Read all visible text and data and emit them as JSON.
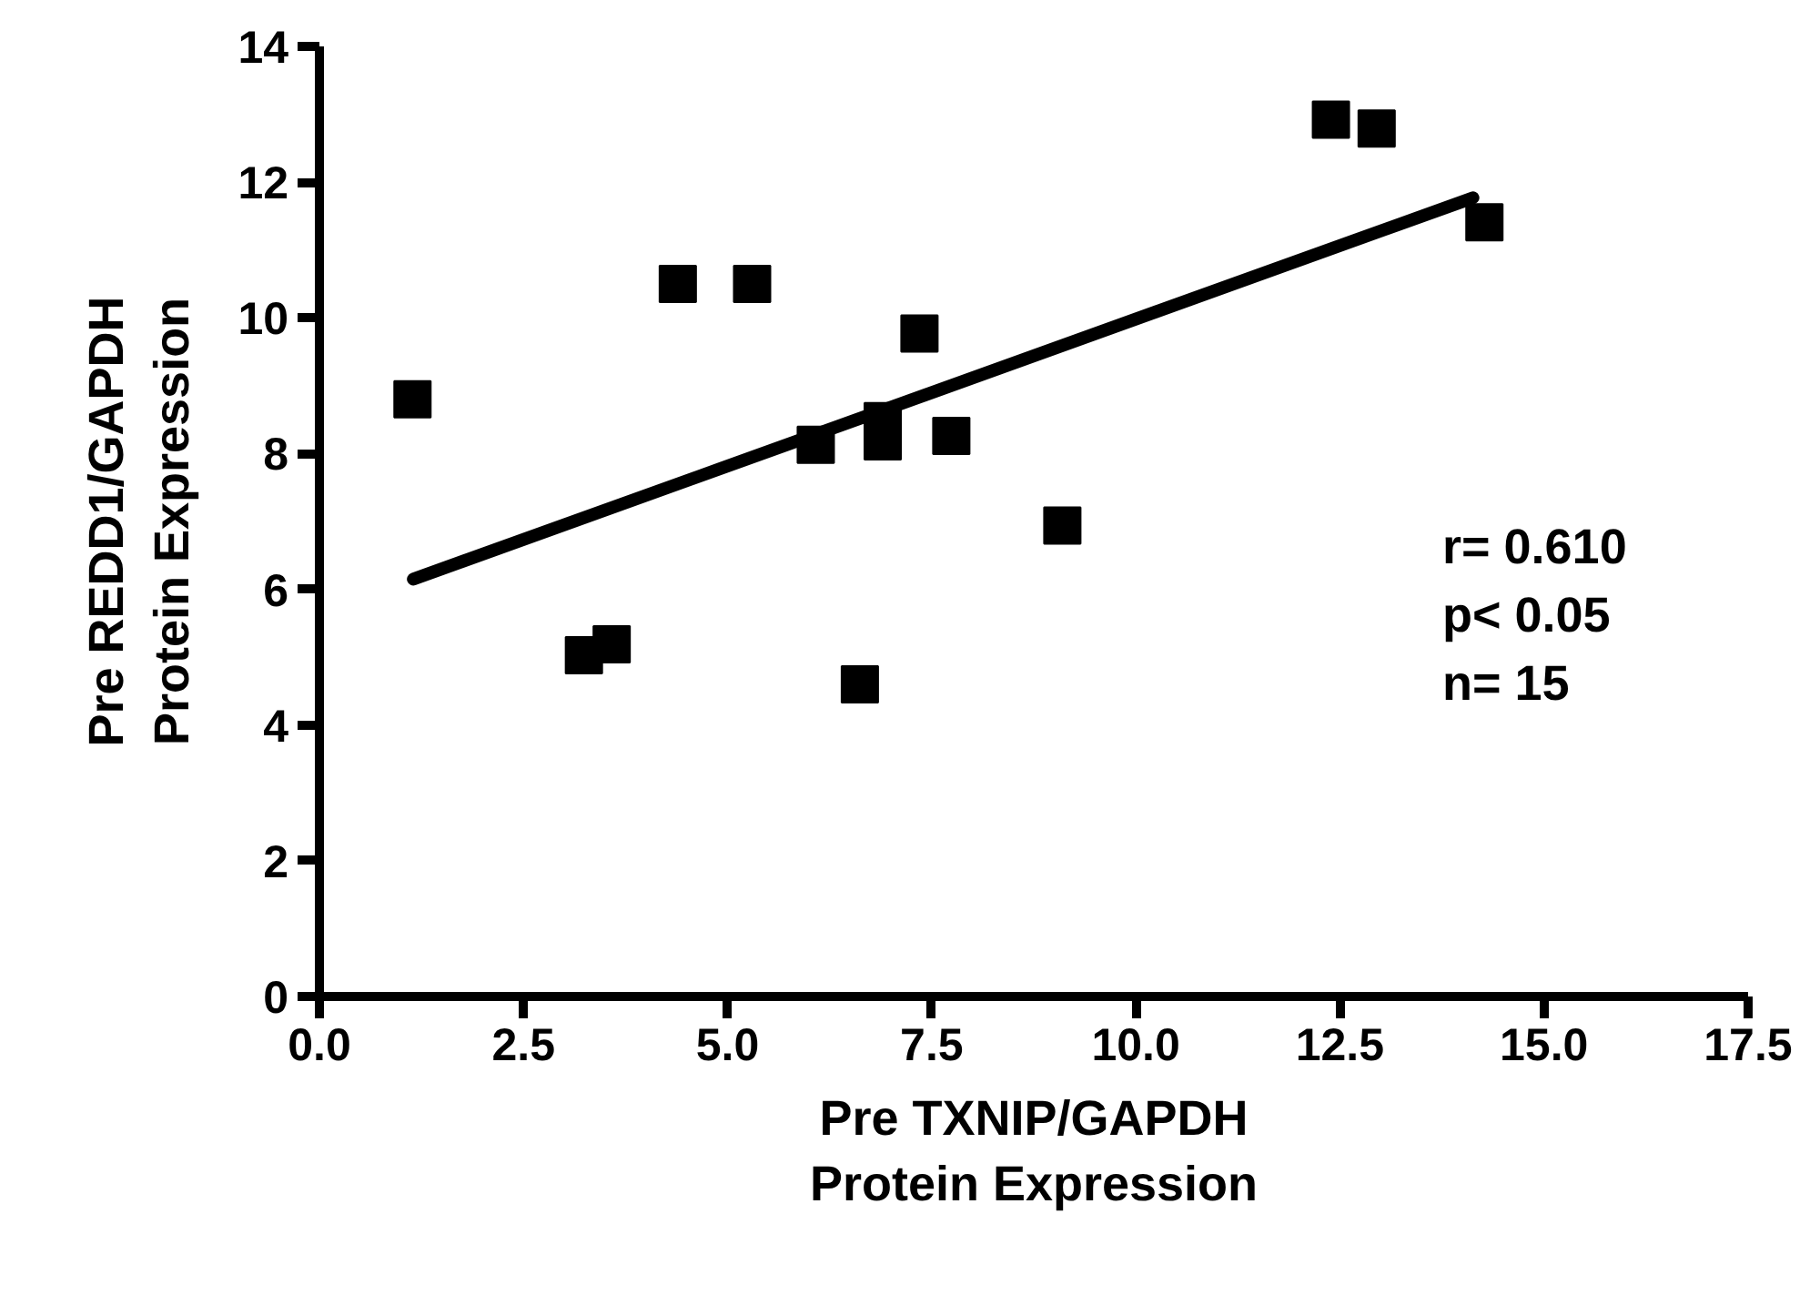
{
  "chart_data": {
    "type": "scatter",
    "xlabel": "Pre TXNIP/GAPDH\nProtein Expression",
    "ylabel": "Pre REDD1/GAPDH\nProtein Expression",
    "xlim": [
      0,
      17.5
    ],
    "ylim": [
      0,
      14
    ],
    "xticks": [
      {
        "value": 0,
        "label": "0.0"
      },
      2.5,
      {
        "value": 5,
        "label": "5.0"
      },
      7.5,
      {
        "value": 10,
        "label": "10.0"
      },
      12.5,
      {
        "value": 15,
        "label": "15.0"
      },
      17.5
    ],
    "yticks": [
      0,
      2,
      4,
      6,
      8,
      10,
      12,
      14
    ],
    "grid": false,
    "series": [
      {
        "marker": "square",
        "color": "#000000",
        "x": [
          1.14,
          3.24,
          3.58,
          4.39,
          5.3,
          6.08,
          6.9,
          6.9,
          7.35,
          7.74,
          9.1,
          6.62,
          12.39,
          12.95,
          14.27
        ],
        "values": [
          8.8,
          5.03,
          5.19,
          10.5,
          10.5,
          8.13,
          8.48,
          8.18,
          9.77,
          8.26,
          6.94,
          4.6,
          12.92,
          12.79,
          11.41
        ]
      },
      {
        "type": "line",
        "color": "#000000",
        "x": [
          1.15,
          14.13
        ],
        "values": [
          6.15,
          11.77
        ]
      }
    ],
    "annotations": [
      "r= 0.610\np< 0.05\nn= 15"
    ]
  }
}
